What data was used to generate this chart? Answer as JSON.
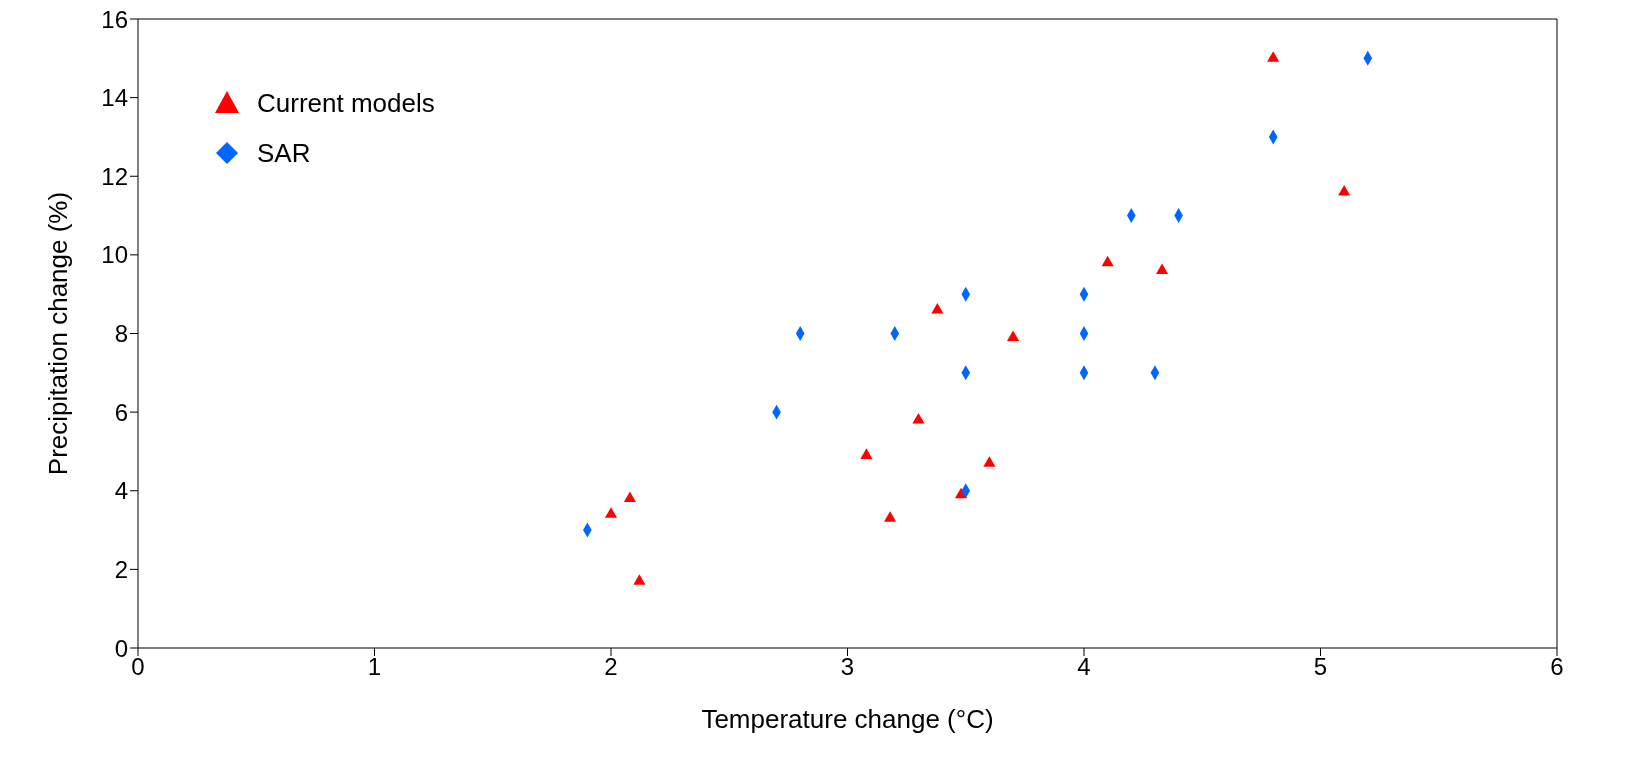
{
  "chart_data": {
    "type": "scatter",
    "xlabel": "Temperature change (°C)",
    "ylabel": "Precipitation change (%)",
    "xlim": [
      0,
      6
    ],
    "xticks": [
      0,
      1,
      2,
      3,
      4,
      5,
      6
    ],
    "ylim": [
      0,
      16
    ],
    "yticks": [
      0,
      2,
      4,
      6,
      8,
      10,
      12,
      14,
      16
    ],
    "grid": false,
    "legend": "top left",
    "series": [
      {
        "name": "Current models",
        "color": "#ff0000",
        "marker": "triangle",
        "x": [
          2.0,
          2.08,
          2.12,
          3.08,
          3.18,
          3.3,
          3.38,
          3.48,
          3.6,
          3.7,
          4.1,
          4.33,
          4.8,
          5.1
        ],
        "values": [
          3.4,
          3.8,
          1.7,
          4.9,
          3.3,
          5.8,
          8.6,
          3.9,
          4.7,
          7.9,
          9.8,
          9.6,
          15,
          11.6
        ]
      },
      {
        "name": "SAR",
        "color": "#0066ff",
        "marker": "diamond",
        "x": [
          1.9,
          2.7,
          2.8,
          3.2,
          3.5,
          3.5,
          3.5,
          4.0,
          4.0,
          4.0,
          4.2,
          4.4,
          4.3,
          4.8,
          5.2
        ],
        "values": [
          3,
          6,
          8,
          8,
          9,
          7,
          4,
          9,
          8,
          7,
          11,
          11,
          7,
          13,
          15
        ]
      }
    ]
  }
}
